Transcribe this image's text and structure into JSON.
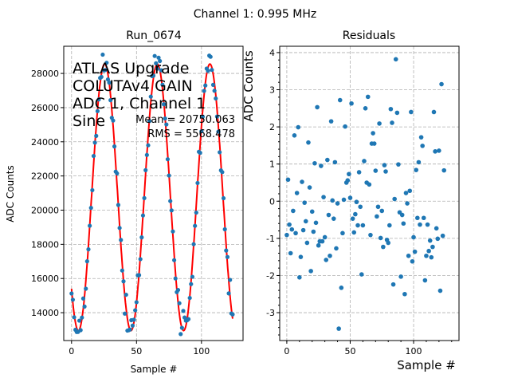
{
  "chart_data": [
    {
      "type": "scatter",
      "suptitle": "Channel 1: 0.995 MHz",
      "title": "Run_0674",
      "xlabel": "Sample #",
      "ylabel": "ADC Counts",
      "xlim": [
        -6,
        132
      ],
      "ylim": [
        12370,
        29590
      ],
      "xticks": [
        0,
        50,
        100
      ],
      "yticks": [
        14000,
        16000,
        18000,
        20000,
        22000,
        24000,
        26000,
        28000
      ],
      "grid": true,
      "annotation_lines": [
        "ATLAS Upgrade",
        "COLUTAv4 GAIN",
        "ADC 1, Channel 1",
        "Sine"
      ],
      "mean_label": "Mean = 20750.063",
      "rms_label": "RMS = 5568.478",
      "fit": {
        "mean": 20750,
        "amplitude": 7800,
        "period_samples": 40.5,
        "peak_sample": 25.5,
        "color": "#ff0000"
      },
      "point_color": "#1f77b4"
    },
    {
      "type": "scatter",
      "title": "Residuals",
      "xlabel": "Sample #",
      "ylabel": "ADC Counts",
      "xlim": [
        -5.6,
        135.8
      ],
      "ylim": [
        -3.75,
        4.17
      ],
      "xticks": [
        0,
        50,
        100
      ],
      "yticks": [
        -3,
        -2,
        -1,
        0,
        1,
        2,
        3,
        4
      ],
      "grid": true,
      "point_color": "#1f77b4",
      "values": [
        -0.91,
        0.58,
        -0.63,
        -1.4,
        -0.76,
        -0.26,
        1.77,
        -0.86,
        0.22,
        1.99,
        -2.05,
        -1.5,
        0.52,
        -0.78,
        -0.04,
        -0.54,
        -1.12,
        1.58,
        0.37,
        -1.88,
        -0.28,
        -0.82,
        1.02,
        -0.58,
        2.53,
        -1.19,
        -1.08,
        0.95,
        -1.08,
        0.11,
        -0.97,
        -1.58,
        1.11,
        -0.37,
        -1.47,
        2.15,
        0.02,
        -0.47,
        1.05,
        -1.27,
        -0.06,
        -3.43,
        2.72,
        -2.33,
        -0.86,
        0.04,
        2.01,
        0.5,
        0.56,
        0.73,
        0.09,
        2.63,
        -0.47,
        -0.84,
        -0.35,
        -0.02,
        -0.65,
        0.78,
        -0.15,
        -1.97,
        -0.65,
        1.08,
        2.5,
        0.5,
        2.81,
        0.45,
        -0.91,
        1.55,
        1.83,
        1.55,
        0.82,
        -0.41,
        -0.15,
        2.09,
        -0.99,
        -0.26,
        -1.23,
        0.97,
        0.8,
        -1.04,
        -1.12,
        -0.65,
        2.48,
        2.11,
        -2.24,
        0.06,
        3.82,
        2.38,
        0.99,
        -0.3,
        -2.03,
        -0.37,
        -0.6,
        -2.5,
        0.22,
        -0.06,
        -1.47,
        0.28,
        2.4,
        -1.62,
        -0.97,
        -1.36,
        0.84,
        -0.45,
        1.05,
        -0.63,
        1.72,
        1.49,
        -0.45,
        -2.13,
        -1.47,
        -0.63,
        -1.34,
        -1.06,
        -1.51,
        -1.23,
        2.4,
        1.34,
        -0.73,
        -1.01,
        1.36,
        -2.41,
        3.15,
        -0.93,
        0.83
      ]
    }
  ]
}
